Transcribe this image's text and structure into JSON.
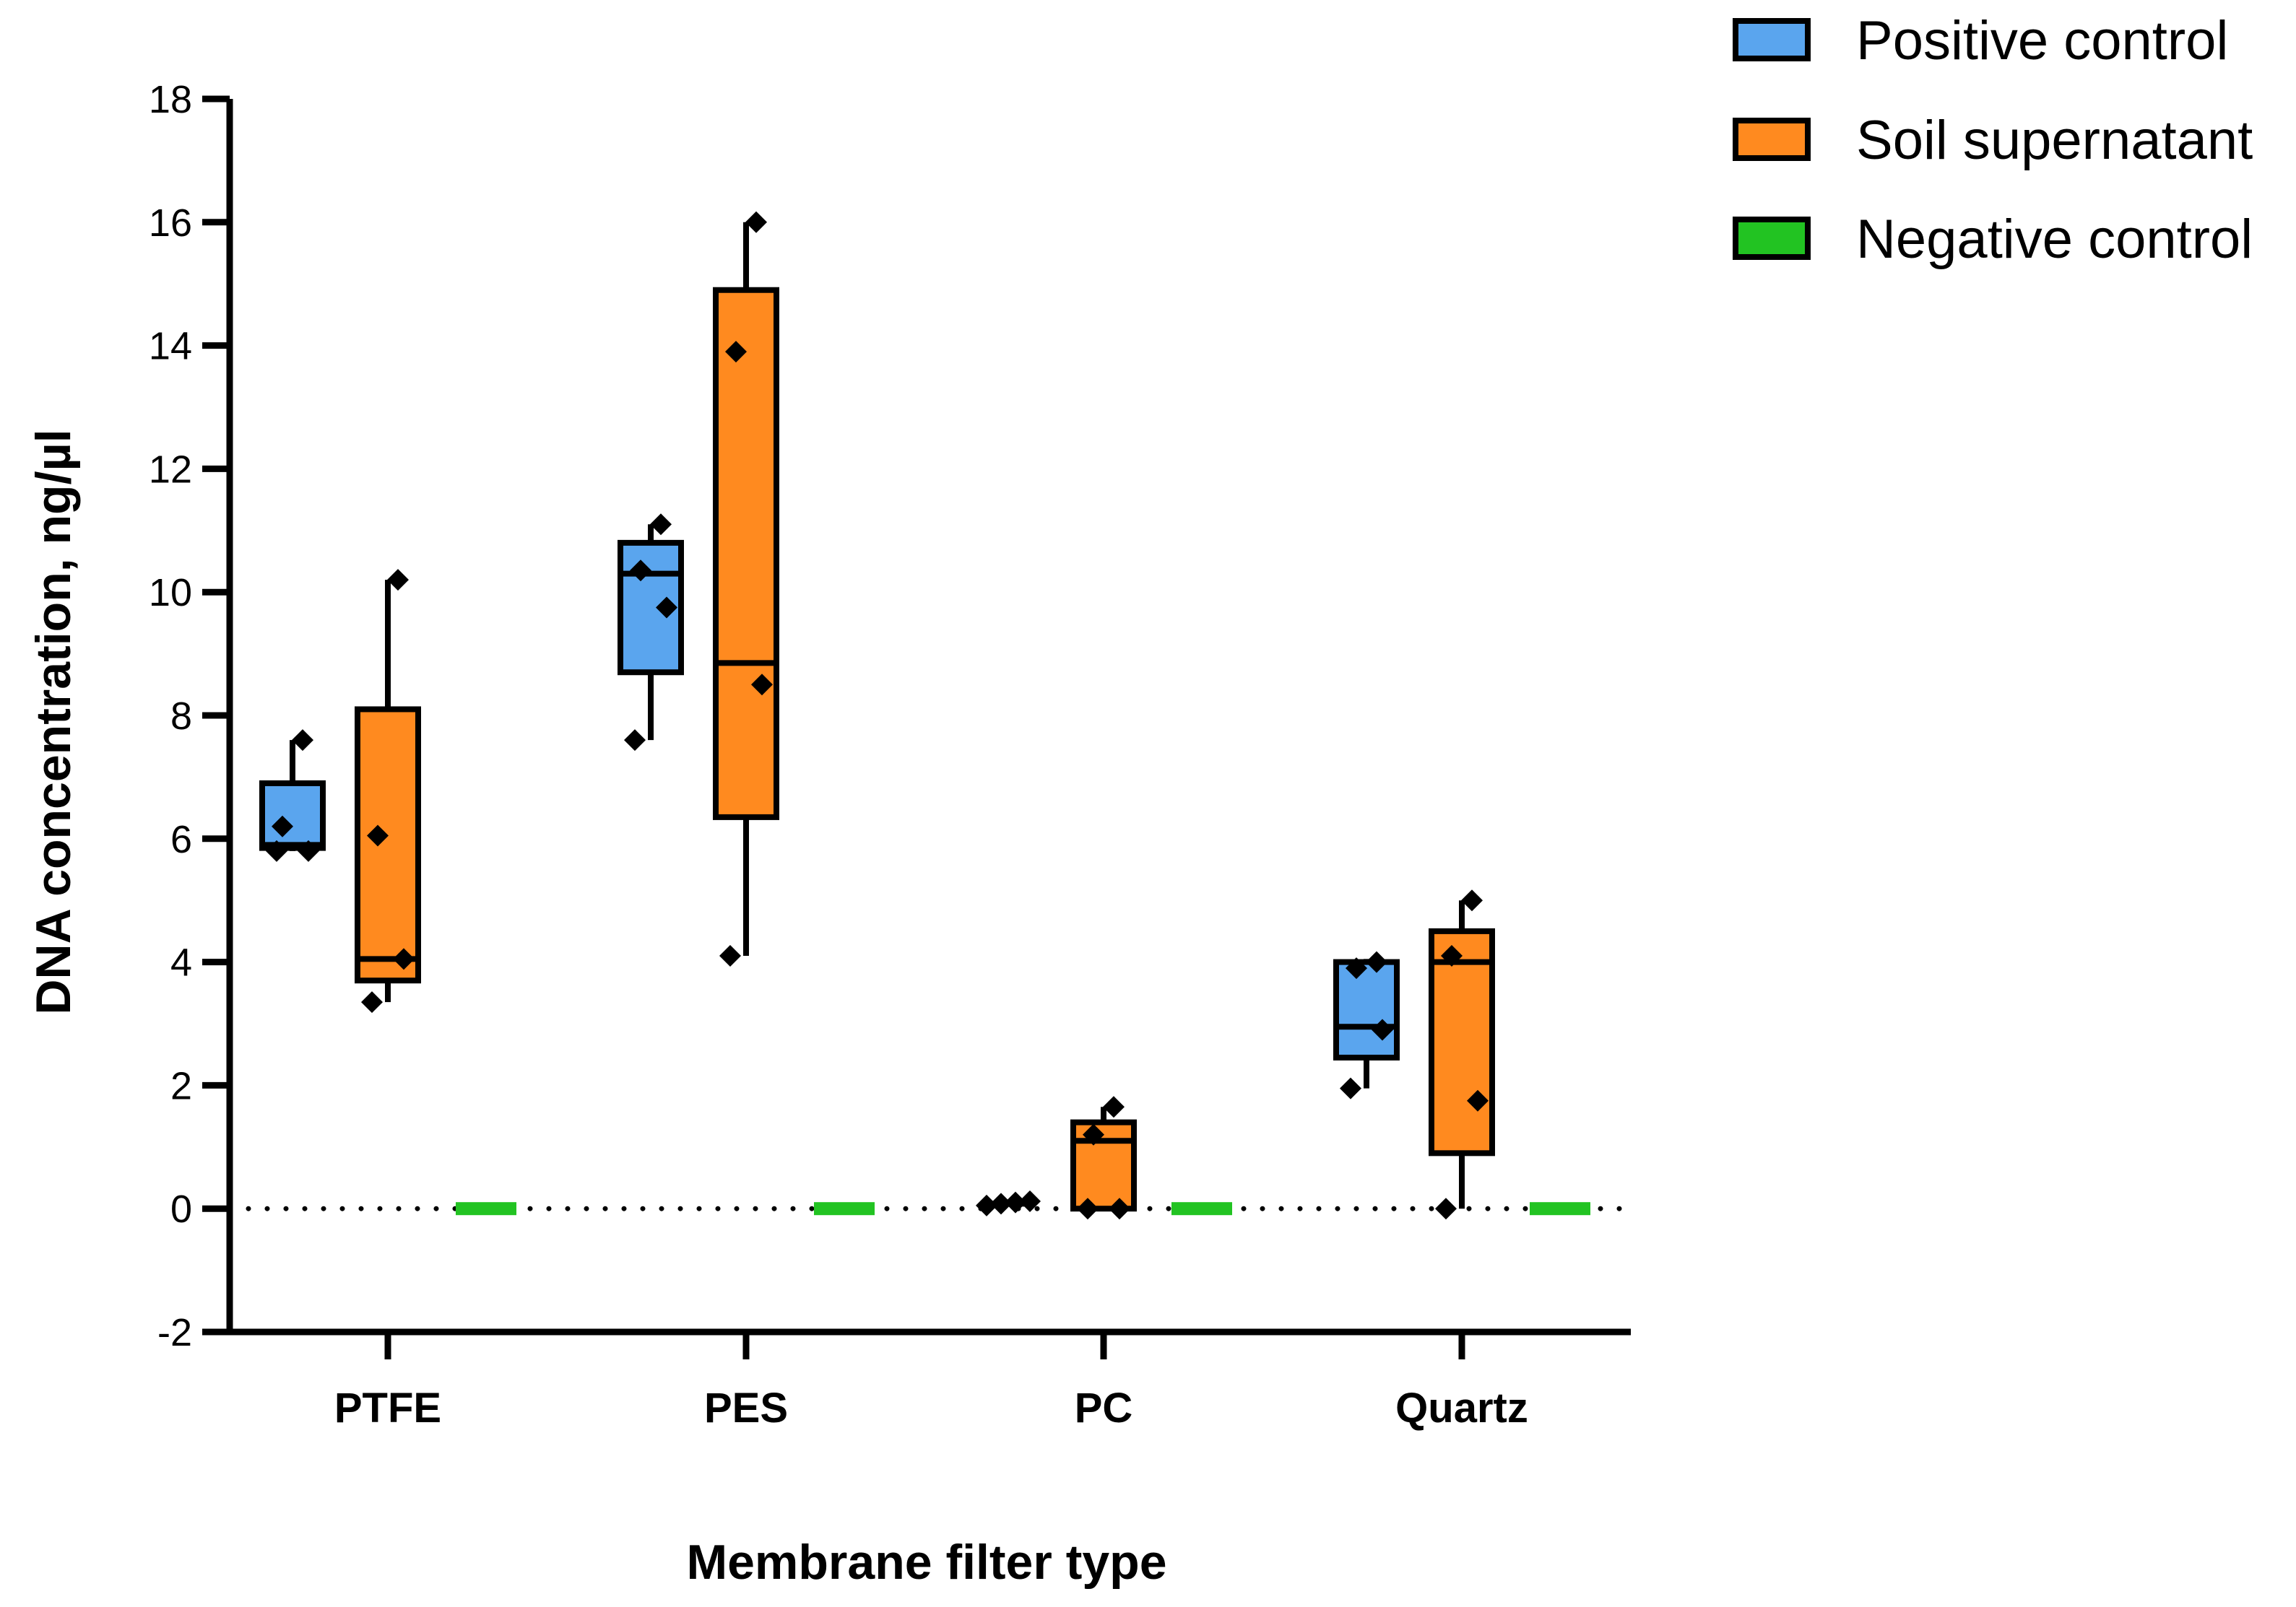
{
  "chart_data": {
    "type": "box",
    "title": "",
    "xlabel": "Membrane filter type",
    "ylabel": "DNA concentration, ng/µl",
    "ylim": [
      -2,
      18
    ],
    "yticks": [
      -2,
      0,
      2,
      4,
      6,
      8,
      10,
      12,
      14,
      16,
      18
    ],
    "reference_line": {
      "y": 0,
      "style": "dotted"
    },
    "categories": [
      "PTFE",
      "PES",
      "PC",
      "Quartz"
    ],
    "legend_position": "top-right",
    "series": [
      {
        "name": "Positive control",
        "color": "#5aa5ee",
        "boxes": [
          {
            "category": "PTFE",
            "min": 5.8,
            "q1": 5.85,
            "median": 5.9,
            "q3": 6.9,
            "max": 7.6,
            "points": [
              5.8,
              5.8,
              6.2,
              7.6
            ]
          },
          {
            "category": "PES",
            "min": 7.6,
            "q1": 8.7,
            "median": 10.3,
            "q3": 10.8,
            "max": 11.1,
            "points": [
              7.6,
              9.75,
              10.35,
              11.1
            ]
          },
          {
            "category": "PC",
            "min": 0.05,
            "q1": 0.07,
            "median": 0.08,
            "q3": 0.1,
            "max": 0.12,
            "points": [
              0.05,
              0.08,
              0.1,
              0.12
            ]
          },
          {
            "category": "Quartz",
            "min": 1.95,
            "q1": 2.45,
            "median": 2.95,
            "q3": 4.0,
            "max": 4.05,
            "points": [
              1.95,
              2.9,
              3.9,
              4.0
            ]
          }
        ]
      },
      {
        "name": "Soil supernatant",
        "color": "#ff8a1f",
        "boxes": [
          {
            "category": "PTFE",
            "min": 3.35,
            "q1": 3.7,
            "median": 4.05,
            "q3": 8.1,
            "max": 10.2,
            "points": [
              3.35,
              4.05,
              6.05,
              10.2
            ]
          },
          {
            "category": "PES",
            "min": 4.1,
            "q1": 6.35,
            "median": 8.85,
            "q3": 14.9,
            "max": 16.0,
            "points": [
              4.1,
              8.5,
              13.9,
              16.0
            ]
          },
          {
            "category": "PC",
            "min": 0.0,
            "q1": 0.0,
            "median": 1.1,
            "q3": 1.4,
            "max": 1.65,
            "points": [
              0.0,
              0.0,
              1.2,
              1.65
            ]
          },
          {
            "category": "Quartz",
            "min": 0.0,
            "q1": 0.9,
            "median": 4.0,
            "q3": 4.5,
            "max": 5.0,
            "points": [
              0.0,
              1.75,
              4.1,
              5.0
            ]
          }
        ]
      },
      {
        "name": "Negative control",
        "color": "#22c322",
        "boxes": [
          {
            "category": "PTFE",
            "min": 0,
            "q1": 0,
            "median": 0,
            "q3": 0,
            "max": 0,
            "points": [
              0,
              0,
              0,
              0
            ]
          },
          {
            "category": "PES",
            "min": 0,
            "q1": 0,
            "median": 0,
            "q3": 0,
            "max": 0,
            "points": [
              0,
              0,
              0,
              0
            ]
          },
          {
            "category": "PC",
            "min": 0,
            "q1": 0,
            "median": 0,
            "q3": 0,
            "max": 0,
            "points": [
              0,
              0,
              0,
              0
            ]
          },
          {
            "category": "Quartz",
            "min": 0,
            "q1": 0,
            "median": 0,
            "q3": 0,
            "max": 0,
            "points": [
              0,
              0,
              0,
              0
            ]
          }
        ]
      }
    ]
  }
}
